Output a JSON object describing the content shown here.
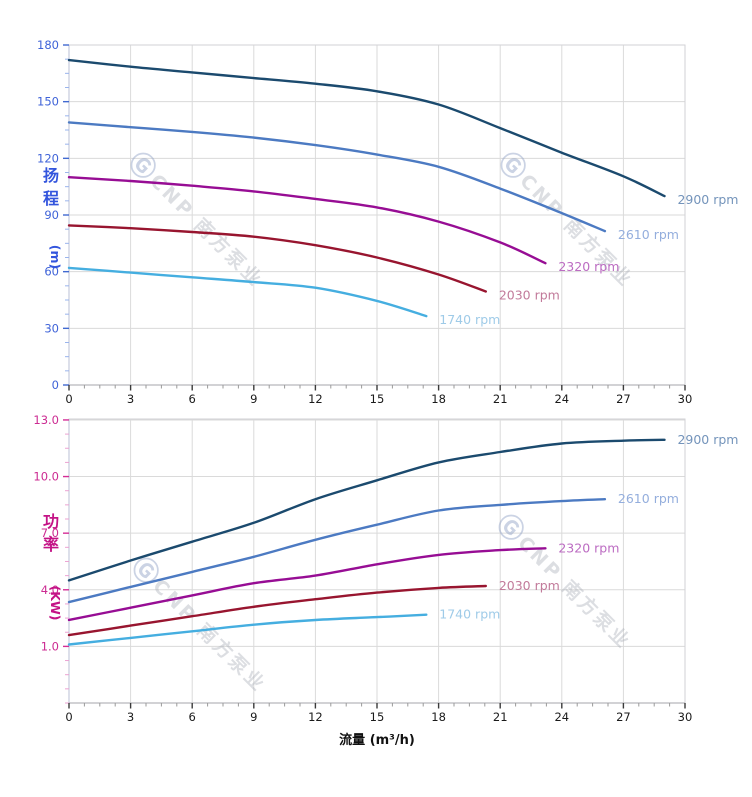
{
  "page": {
    "background": "#ffffff"
  },
  "watermark": {
    "logo_glyph": "Ⓖ",
    "brand_text": "CNP 南方泵业",
    "text_color": "rgba(168,172,182,0.40)",
    "logo_color": "rgba(140,158,196,0.45)"
  },
  "chart_data": [
    {
      "type": "line",
      "id": "head-flow-chart",
      "ylabel_chars": [
        "扬",
        "程"
      ],
      "ylabel_unit": "(m)",
      "ylabel_color": "#3355dd",
      "xlabel": "流量 (m³/h)",
      "show_x_title": false,
      "xlim": [
        0,
        30
      ],
      "ylim": [
        0,
        180
      ],
      "grid": true,
      "x_tick_labels": [
        "0",
        "3",
        "6",
        "9",
        "12",
        "15",
        "18",
        "21",
        "24",
        "27",
        "30"
      ],
      "x_ticks": [
        0,
        3,
        6,
        9,
        12,
        15,
        18,
        21,
        24,
        27,
        30
      ],
      "x_minor_step": 0.75,
      "y_tick_labels": [
        "0",
        "30",
        "60",
        "90",
        "120",
        "150",
        "180"
      ],
      "y_ticks": [
        0,
        30,
        60,
        90,
        120,
        150,
        180
      ],
      "y_minor_step": 7.5,
      "tick_label_color": "#3f63d8",
      "major_tick_color": "#4169d0",
      "minor_tick_color": "#9ab4ec",
      "x_tick_label_color": "#1a1a1a",
      "series": [
        {
          "name": "2900 rpm",
          "rpm": 2900,
          "color": "#1b4a6e",
          "label_color": "#7494bb",
          "points": [
            [
              0,
              172
            ],
            [
              3,
              168.5
            ],
            [
              6,
              165.5
            ],
            [
              9,
              162.5
            ],
            [
              12,
              159.5
            ],
            [
              15,
              155.5
            ],
            [
              18,
              148.5
            ],
            [
              21,
              136
            ],
            [
              24,
              123
            ],
            [
              27,
              110.5
            ],
            [
              29,
              100
            ]
          ]
        },
        {
          "name": "2610 rpm",
          "rpm": 2610,
          "color": "#4c7ac2",
          "label_color": "#94aedd",
          "points": [
            [
              0,
              139
            ],
            [
              3,
              136.5
            ],
            [
              6,
              134
            ],
            [
              9,
              131
            ],
            [
              12,
              127
            ],
            [
              15,
              122
            ],
            [
              18,
              115.5
            ],
            [
              21,
              104
            ],
            [
              24,
              91
            ],
            [
              26.1,
              81.5
            ]
          ]
        },
        {
          "name": "2320 rpm",
          "rpm": 2320,
          "color": "#970d94",
          "label_color": "#bc6cc2",
          "points": [
            [
              0,
              110
            ],
            [
              3,
              108
            ],
            [
              6,
              105.5
            ],
            [
              9,
              102.5
            ],
            [
              12,
              98.5
            ],
            [
              15,
              94
            ],
            [
              18,
              86.5
            ],
            [
              21,
              75.5
            ],
            [
              23.2,
              64.5
            ]
          ]
        },
        {
          "name": "2030 rpm",
          "rpm": 2030,
          "color": "#98152f",
          "label_color": "#c27b9b",
          "points": [
            [
              0,
              84.5
            ],
            [
              3,
              83
            ],
            [
              6,
              81
            ],
            [
              9,
              78.5
            ],
            [
              12,
              74
            ],
            [
              15,
              67.5
            ],
            [
              18,
              58.5
            ],
            [
              20.3,
              49.5
            ]
          ]
        },
        {
          "name": "1740 rpm",
          "rpm": 1740,
          "color": "#45aee0",
          "label_color": "#9fcbe8",
          "points": [
            [
              0,
              62
            ],
            [
              3,
              59.5
            ],
            [
              6,
              57
            ],
            [
              9,
              54.5
            ],
            [
              12,
              51.5
            ],
            [
              15,
              44.5
            ],
            [
              17.4,
              36.5
            ]
          ]
        }
      ]
    },
    {
      "type": "line",
      "id": "power-flow-chart",
      "ylabel_chars": [
        "功",
        "率"
      ],
      "ylabel_unit": "(KW)",
      "ylabel_color": "#c41386",
      "xlabel": "流量 (m³/h)",
      "show_x_title": true,
      "xlim": [
        0,
        30
      ],
      "ylim": [
        -2,
        13.05
      ],
      "grid": true,
      "x_tick_labels": [
        "0",
        "3",
        "6",
        "9",
        "12",
        "15",
        "18",
        "21",
        "24",
        "27",
        "30"
      ],
      "x_ticks": [
        0,
        3,
        6,
        9,
        12,
        15,
        18,
        21,
        24,
        27,
        30
      ],
      "x_minor_step": 0.75,
      "y_tick_labels": [
        "1.0",
        "4.0",
        "7.0",
        "10.0",
        "13.0"
      ],
      "y_ticks": [
        1,
        4,
        7,
        10,
        13
      ],
      "y_minor_step": 0.75,
      "tick_label_color": "#cc2b92",
      "major_tick_color": "#d42e96",
      "minor_tick_color": "#eba2d2",
      "x_tick_label_color": "#1a1a1a",
      "series": [
        {
          "name": "2900 rpm",
          "rpm": 2900,
          "color": "#1b4a6e",
          "label_color": "#7494bb",
          "points": [
            [
              0,
              4.5
            ],
            [
              3,
              5.55
            ],
            [
              6,
              6.55
            ],
            [
              9,
              7.55
            ],
            [
              12,
              8.8
            ],
            [
              15,
              9.8
            ],
            [
              18,
              10.75
            ],
            [
              21,
              11.3
            ],
            [
              24,
              11.75
            ],
            [
              27,
              11.9
            ],
            [
              29,
              11.95
            ]
          ]
        },
        {
          "name": "2610 rpm",
          "rpm": 2610,
          "color": "#4c7ac2",
          "label_color": "#94aedd",
          "points": [
            [
              0,
              3.35
            ],
            [
              3,
              4.15
            ],
            [
              6,
              4.95
            ],
            [
              9,
              5.75
            ],
            [
              12,
              6.65
            ],
            [
              15,
              7.45
            ],
            [
              18,
              8.2
            ],
            [
              21,
              8.5
            ],
            [
              24,
              8.7
            ],
            [
              26.1,
              8.8
            ]
          ]
        },
        {
          "name": "2320 rpm",
          "rpm": 2320,
          "color": "#970d94",
          "label_color": "#bc6cc2",
          "points": [
            [
              0,
              2.4
            ],
            [
              3,
              3.05
            ],
            [
              6,
              3.7
            ],
            [
              9,
              4.35
            ],
            [
              12,
              4.75
            ],
            [
              15,
              5.35
            ],
            [
              18,
              5.85
            ],
            [
              21,
              6.1
            ],
            [
              23.2,
              6.2
            ]
          ]
        },
        {
          "name": "2030 rpm",
          "rpm": 2030,
          "color": "#98152f",
          "label_color": "#c27b9b",
          "points": [
            [
              0,
              1.6
            ],
            [
              3,
              2.1
            ],
            [
              6,
              2.6
            ],
            [
              9,
              3.1
            ],
            [
              12,
              3.5
            ],
            [
              15,
              3.85
            ],
            [
              18,
              4.1
            ],
            [
              20.3,
              4.2
            ]
          ]
        },
        {
          "name": "1740 rpm",
          "rpm": 1740,
          "color": "#45aee0",
          "label_color": "#9fcbe8",
          "points": [
            [
              0,
              1.1
            ],
            [
              3,
              1.45
            ],
            [
              6,
              1.8
            ],
            [
              9,
              2.15
            ],
            [
              12,
              2.4
            ],
            [
              15,
              2.55
            ],
            [
              17.4,
              2.68
            ]
          ]
        }
      ]
    }
  ]
}
